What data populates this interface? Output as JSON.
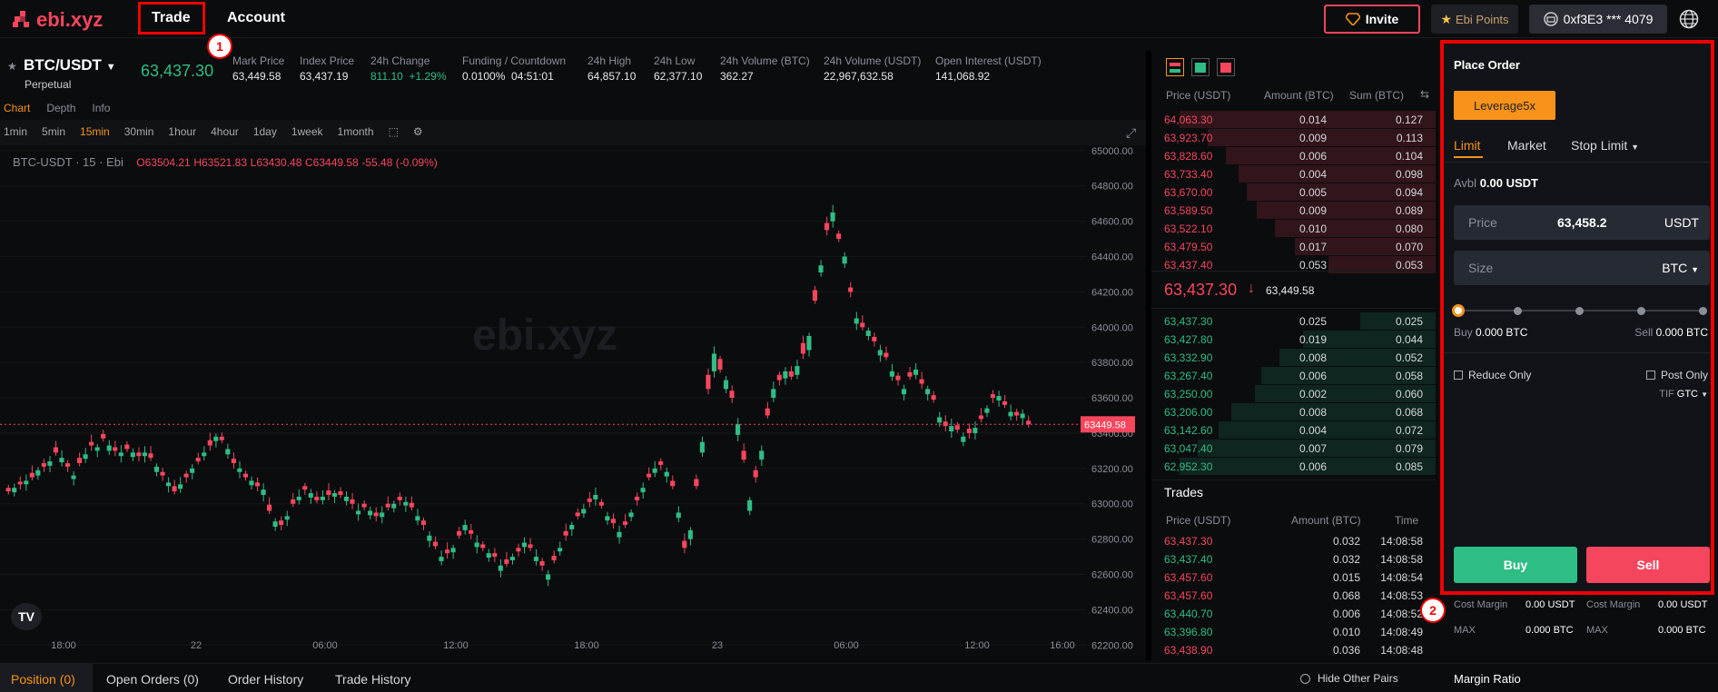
{
  "nav": {
    "logo_text": "ebi.xyz",
    "trade": "Trade",
    "account": "Account",
    "invite": "Invite",
    "ebi_points": "Ebi Points",
    "wallet": "0xf3E3 *** 4079",
    "badge1": "1",
    "badge2": "2"
  },
  "ticker": {
    "pair": "BTC/USDT",
    "type": "Perpetual",
    "last_price": "63,437.30",
    "mark_label": "Mark Price",
    "mark": "63,449.58",
    "index_label": "Index Price",
    "index": "63,437.19",
    "change_label": "24h Change",
    "change": "811.10",
    "change_pct": "+1.29%",
    "funding_label": "Funding / Countdown",
    "funding": "0.0100%",
    "countdown": "04:51:01",
    "high_label": "24h High",
    "high": "64,857.10",
    "low_label": "24h Low",
    "low": "62,377.10",
    "volb_label": "24h Volume (BTC)",
    "volb": "362.27",
    "volu_label": "24h Volume (USDT)",
    "volu": "22,967,632.58",
    "oi_label": "Open Interest (USDT)",
    "oi": "141,068.92"
  },
  "chart_tabs": [
    "Chart",
    "Depth",
    "Info"
  ],
  "timeframes": [
    "1min",
    "5min",
    "15min",
    "30min",
    "1hour",
    "4hour",
    "1day",
    "1week",
    "1month"
  ],
  "active_timeframe": "15min",
  "chart_legend": {
    "symbol": "BTC-USDT · 15 · Ebi",
    "o": "O63504.21",
    "h": "H63521.83",
    "l": "L63430.48",
    "c": "C63449.58",
    "chg": "-55.48 (-0.09%)"
  },
  "chart_data": {
    "type": "candlestick",
    "y_ticks": [
      65000,
      64800,
      64600,
      64400,
      64200,
      64000,
      63800,
      63600,
      63400,
      63200,
      63000,
      62800,
      62600,
      62400,
      62200
    ],
    "y_labels": [
      "65000.00",
      "64800.00",
      "64600.00",
      "64400.00",
      "64200.00",
      "64000.00",
      "63800.00",
      "63600.00",
      "63400.00",
      "63200.00",
      "63000.00",
      "62800.00",
      "62600.00",
      "62400.00",
      "62200.00"
    ],
    "x_labels": [
      "18:00",
      "22",
      "06:00",
      "12:00",
      "18:00",
      "23",
      "06:00",
      "12:00",
      "16:00"
    ],
    "ylim": [
      62150,
      65030
    ],
    "current_price": 63449.58,
    "current_label": "63449.58",
    "watermark": "ebi.xyz",
    "closes": [
      63070,
      63090,
      63110,
      63130,
      63150,
      63190,
      63210,
      63240,
      63290,
      63260,
      63210,
      63160,
      63230,
      63280,
      63330,
      63320,
      63370,
      63330,
      63300,
      63290,
      63310,
      63290,
      63270,
      63290,
      63260,
      63210,
      63160,
      63120,
      63070,
      63110,
      63150,
      63200,
      63240,
      63290,
      63330,
      63380,
      63360,
      63310,
      63230,
      63200,
      63150,
      63130,
      63100,
      63080,
      62960,
      62900,
      62880,
      62930,
      63000,
      63040,
      63080,
      63060,
      63020,
      63040,
      63050,
      63060,
      63050,
      63040,
      63000,
      62960,
      62980,
      62960,
      62930,
      62950,
      62980,
      63000,
      63020,
      63010,
      62980,
      62930,
      62880,
      62820,
      62760,
      62700,
      62720,
      62750,
      62820,
      62880,
      62830,
      62780,
      62750,
      62720,
      62700,
      62650,
      62660,
      62700,
      62730,
      62780,
      62750,
      62700,
      62650,
      62600,
      62680,
      62750,
      62820,
      62880,
      62930,
      62970,
      63010,
      63050,
      62990,
      62930,
      62890,
      62840,
      62880,
      62950,
      63020,
      63090,
      63150,
      63200,
      63220,
      63180,
      63100,
      62950,
      62750,
      62850,
      63100,
      63350,
      63650,
      63850,
      63760,
      63700,
      63600,
      63450,
      63250,
      63020,
      63150,
      63300,
      63500,
      63650,
      63700,
      63750,
      63720,
      63780,
      63850,
      63950,
      64150,
      64350,
      64550,
      64650,
      64500,
      64400,
      64200,
      64050,
      64000,
      63980,
      63920,
      63870,
      63830,
      63750,
      63700,
      63650,
      63720,
      63760,
      63680,
      63650,
      63590,
      63490,
      63440,
      63440,
      63420,
      63380,
      63400,
      63430,
      63480,
      63540,
      63600,
      63610,
      63560,
      63520,
      63500,
      63510,
      63450
    ],
    "opens_offset": [
      -20,
      25,
      -15,
      20,
      -25,
      30,
      -20,
      25,
      -30,
      25,
      -20,
      20,
      -30,
      25,
      -20,
      20,
      -25,
      30,
      -20,
      20,
      -25,
      25,
      -20,
      20,
      -25,
      30,
      -20,
      20,
      -30,
      25,
      -20,
      25,
      -20,
      20,
      -30,
      25,
      -20,
      30,
      -25,
      20,
      -20,
      25,
      -20,
      30,
      -35,
      30,
      -25,
      20,
      -25,
      20,
      -20,
      25,
      -20,
      20,
      -25,
      20,
      -20,
      25,
      -25,
      20,
      -20,
      25,
      -20,
      25,
      -20,
      25,
      -20,
      20,
      -25,
      25,
      -25,
      30,
      -25,
      25,
      -20,
      25,
      -25,
      30,
      -20,
      25,
      -20,
      25,
      -20,
      30,
      -25,
      20,
      -20,
      25,
      -20,
      25,
      -25,
      30,
      -25,
      20,
      -25,
      25,
      -20,
      25,
      -20,
      25,
      -20,
      25,
      -25,
      30,
      -20,
      25,
      -20,
      25,
      -20,
      25,
      -20,
      25,
      -30,
      30,
      -40,
      50,
      -40,
      60,
      -80,
      100,
      -60,
      50,
      -40,
      60,
      -50,
      60,
      -40,
      50,
      -40,
      50,
      -30,
      40,
      -30,
      50,
      -60,
      80,
      -60,
      40,
      -40,
      50,
      -30,
      40,
      -25,
      30,
      -25,
      30,
      -25,
      30,
      -25,
      30,
      -25,
      30,
      -25,
      30,
      -25,
      30,
      -25,
      30,
      -25,
      30,
      -25,
      30,
      -25,
      30,
      -20,
      25,
      -20,
      25,
      -20,
      25,
      -20,
      25,
      -20,
      25,
      -20,
      25,
      -20,
      25,
      -20,
      25,
      -20,
      25
    ]
  },
  "orderbook": {
    "headers": [
      "Price (USDT)",
      "Amount (BTC)",
      "Sum (BTC)"
    ],
    "asks": [
      [
        "64,063.30",
        "0.014",
        "0.127"
      ],
      [
        "63,923.70",
        "0.009",
        "0.113"
      ],
      [
        "63,828.60",
        "0.006",
        "0.104"
      ],
      [
        "63,733.40",
        "0.004",
        "0.098"
      ],
      [
        "63,670.00",
        "0.005",
        "0.094"
      ],
      [
        "63,589.50",
        "0.009",
        "0.089"
      ],
      [
        "63,522.10",
        "0.010",
        "0.080"
      ],
      [
        "63,479.50",
        "0.017",
        "0.070"
      ],
      [
        "63,437.40",
        "0.053",
        "0.053"
      ]
    ],
    "last": "63,437.30",
    "mark": "63,449.58",
    "bids": [
      [
        "63,437.30",
        "0.025",
        "0.025"
      ],
      [
        "63,427.80",
        "0.019",
        "0.044"
      ],
      [
        "63,332.90",
        "0.008",
        "0.052"
      ],
      [
        "63,267.40",
        "0.006",
        "0.058"
      ],
      [
        "63,250.00",
        "0.002",
        "0.060"
      ],
      [
        "63,206.00",
        "0.008",
        "0.068"
      ],
      [
        "63,142.60",
        "0.004",
        "0.072"
      ],
      [
        "63,047.40",
        "0.007",
        "0.079"
      ],
      [
        "62,952.30",
        "0.006",
        "0.085"
      ]
    ]
  },
  "trades": {
    "title": "Trades",
    "headers": [
      "Price (USDT)",
      "Amount (BTC)",
      "Time"
    ],
    "rows": [
      [
        "63,437.30",
        "0.032",
        "14:08:58",
        "sell"
      ],
      [
        "63,437.40",
        "0.032",
        "14:08:58",
        "buy"
      ],
      [
        "63,457.60",
        "0.015",
        "14:08:54",
        "sell"
      ],
      [
        "63,457.60",
        "0.068",
        "14:08:53",
        "sell"
      ],
      [
        "63,440.70",
        "0.006",
        "14:08:52",
        "buy"
      ],
      [
        "63,396.80",
        "0.010",
        "14:08:49",
        "buy"
      ],
      [
        "63,438.90",
        "0.036",
        "14:08:48",
        "sell"
      ]
    ]
  },
  "order": {
    "title": "Place Order",
    "leverage": "Leverage5x",
    "tabs": [
      "Limit",
      "Market",
      "Stop Limit"
    ],
    "avbl_label": "Avbl",
    "avbl": "0.00 USDT",
    "price_label": "Price",
    "price": "63,458.2",
    "price_unit": "USDT",
    "size_label": "Size",
    "size_unit": "BTC",
    "buy_label": "Buy",
    "buy_val": "0.000 BTC",
    "sell_label": "Sell",
    "sell_val": "0.000 BTC",
    "reduce_only": "Reduce Only",
    "post_only": "Post Only",
    "tif_label": "TIF",
    "tif": "GTC",
    "buy_btn": "Buy",
    "sell_btn": "Sell",
    "cost_label": "Cost Margin",
    "cost_buy": "0.00 USDT",
    "cost_sell": "0.00 USDT",
    "max_label": "MAX",
    "max_buy": "0.000 BTC",
    "max_sell": "0.000 BTC"
  },
  "bottom": {
    "tabs": [
      "Position (0)",
      "Open Orders (0)",
      "Order History",
      "Trade History"
    ],
    "hide_pairs": "Hide Other Pairs",
    "margin_ratio": "Margin Ratio"
  },
  "colors": {
    "accent": "#f7931a",
    "up": "#2ebd85",
    "down": "#f6465d",
    "brand": "#f6465d"
  }
}
